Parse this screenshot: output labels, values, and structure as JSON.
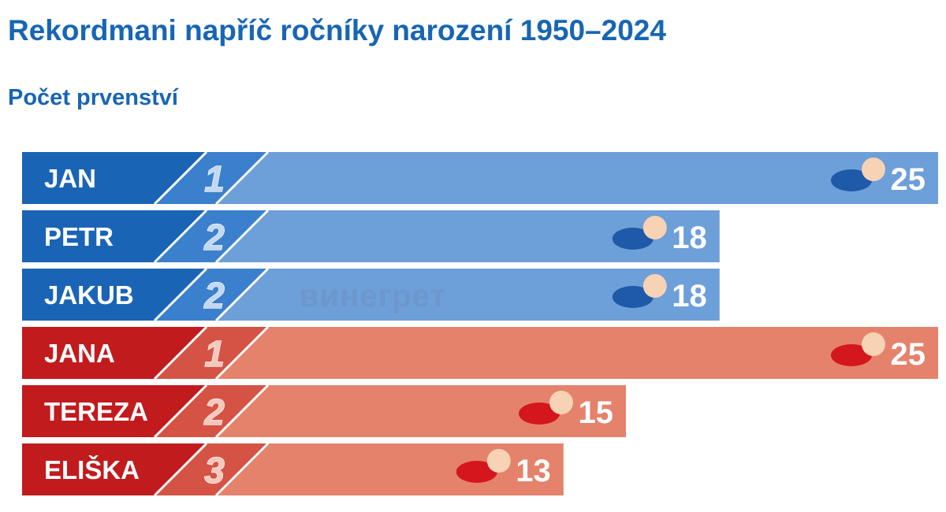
{
  "header": {
    "title": "Rekordmani napříč ročníky narození 1950–2024",
    "subtitle": "Počet prvenství"
  },
  "watermark": "винегрет",
  "colors": {
    "male_dark": "#1a64b6",
    "male_mid": "#3a80cc",
    "male_light": "#6d9fd9",
    "female_dark": "#c11b1e",
    "female_mid": "#d55344",
    "female_light": "#e5826b",
    "rank_text_male": "#c2d8f0",
    "rank_text_female": "#f6c8bc",
    "label_text": "#ffffff"
  },
  "chart_data": {
    "type": "bar",
    "orientation": "horizontal",
    "title": "Rekordmani napříč ročníky narození 1950–2024",
    "subtitle": "Počet prvenství",
    "categories": [
      "JAN",
      "PETR",
      "JAKUB",
      "JANA",
      "TEREZA",
      "ELIŠKA"
    ],
    "ranks": [
      "1",
      "2",
      "2",
      "1",
      "2",
      "3"
    ],
    "values": [
      25,
      18,
      18,
      25,
      15,
      13
    ],
    "groups": [
      "male",
      "male",
      "male",
      "female",
      "female",
      "female"
    ],
    "value_labels": [
      "25",
      "18",
      "18",
      "25",
      "15",
      "13"
    ],
    "xlim": [
      0,
      25
    ],
    "grid": false,
    "legend": "none"
  }
}
